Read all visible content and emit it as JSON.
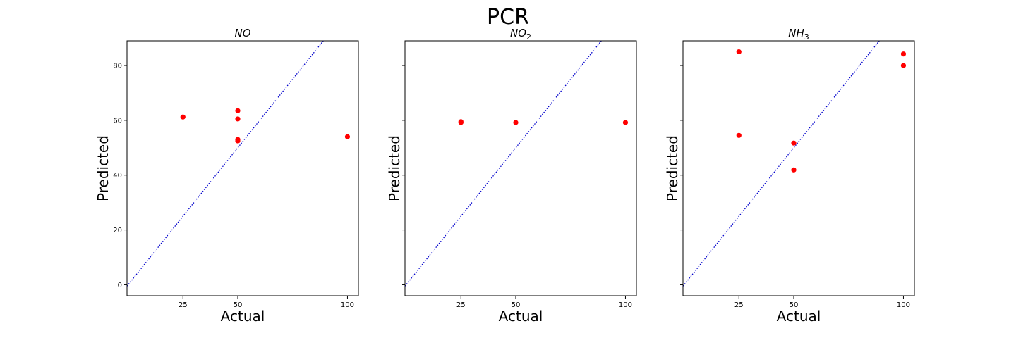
{
  "figure": {
    "title": "PCR"
  },
  "chart_data": [
    {
      "type": "scatter",
      "title": "NO",
      "title_sub": "",
      "xlabel": "Actual",
      "ylabel": "Predicted",
      "xlim": [
        -0.5,
        105
      ],
      "ylim": [
        -4,
        89
      ],
      "xticks": [
        25,
        50,
        100
      ],
      "yticks": [
        0,
        20,
        40,
        60,
        80
      ],
      "ytick_labels_visible": true,
      "reference_line": "y = x",
      "points": [
        {
          "x": 25,
          "y": 61.2
        },
        {
          "x": 50,
          "y": 63.5
        },
        {
          "x": 50,
          "y": 60.5
        },
        {
          "x": 50,
          "y": 53.0
        },
        {
          "x": 50,
          "y": 52.5
        },
        {
          "x": 100,
          "y": 54.0
        }
      ]
    },
    {
      "type": "scatter",
      "title": "NO",
      "title_sub": "2",
      "xlabel": "Actual",
      "ylabel": "Predicted",
      "xlim": [
        -0.5,
        105
      ],
      "ylim": [
        -4,
        89
      ],
      "xticks": [
        25,
        50,
        100
      ],
      "yticks": [
        0,
        20,
        40,
        60,
        80
      ],
      "ytick_labels_visible": false,
      "reference_line": "y = x",
      "points": [
        {
          "x": 25,
          "y": 59.5
        },
        {
          "x": 25,
          "y": 59.2
        },
        {
          "x": 50,
          "y": 59.2
        },
        {
          "x": 100,
          "y": 59.2
        }
      ]
    },
    {
      "type": "scatter",
      "title": "NH",
      "title_sub": "3",
      "xlabel": "Actual",
      "ylabel": "Predicted",
      "xlim": [
        -0.5,
        105
      ],
      "ylim": [
        -4,
        89
      ],
      "xticks": [
        25,
        50,
        100
      ],
      "yticks": [
        0,
        20,
        40,
        60,
        80
      ],
      "ytick_labels_visible": false,
      "reference_line": "y = x",
      "points": [
        {
          "x": 25,
          "y": 85.0
        },
        {
          "x": 25,
          "y": 54.5
        },
        {
          "x": 50,
          "y": 51.7
        },
        {
          "x": 50,
          "y": 41.9
        },
        {
          "x": 100,
          "y": 84.2
        },
        {
          "x": 100,
          "y": 80.0
        }
      ]
    }
  ],
  "colors": {
    "points": "#ff0000",
    "reference_line": "#0000cc",
    "axes": "#000000"
  }
}
